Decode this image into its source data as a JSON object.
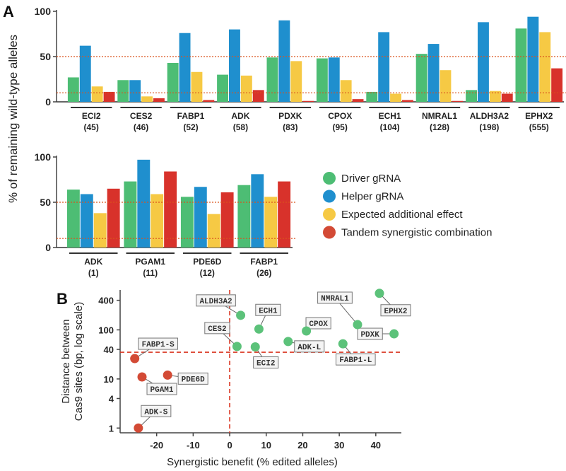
{
  "figure": {
    "panel_a_label": "A",
    "panel_b_label": "B",
    "shared_ylabel": "% of remaining wild-type alleles"
  },
  "colors": {
    "driver": "#4dbd74",
    "helper": "#1f8fce",
    "expected": "#f6c944",
    "tandem": "#d8322b",
    "ref_line": "#d9531e",
    "point_green": "#5cc27a",
    "point_red": "#d34a35",
    "label_border": "#777777"
  },
  "legend": {
    "items": [
      {
        "label": "Driver gRNA",
        "color": "#4dbd74"
      },
      {
        "label": "Helper gRNA",
        "color": "#1f8fce"
      },
      {
        "label": "Expected additional effect",
        "color": "#f6c944"
      },
      {
        "label": "Tandem synergistic combination",
        "color": "#d34a35"
      }
    ]
  },
  "chart_data": [
    {
      "type": "bar",
      "panel": "A-top",
      "ylim": [
        0,
        100
      ],
      "yticks": [
        0,
        50,
        100
      ],
      "ref_lines": [
        10,
        50
      ],
      "categories": [
        "ECI2",
        "CES2",
        "FABP1",
        "ADK",
        "PDXK",
        "CPOX",
        "ECH1",
        "NMRAL1",
        "ALDH3A2",
        "EPHX2"
      ],
      "category_sublabels": [
        "(45)",
        "(46)",
        "(52)",
        "(58)",
        "(83)",
        "(95)",
        "(104)",
        "(128)",
        "(198)",
        "(555)"
      ],
      "series": [
        {
          "name": "Driver gRNA",
          "values": [
            27,
            24,
            43,
            30,
            49,
            48,
            11,
            53,
            13,
            81
          ]
        },
        {
          "name": "Helper gRNA",
          "values": [
            62,
            24,
            76,
            80,
            90,
            49,
            77,
            64,
            88,
            94
          ]
        },
        {
          "name": "Expected additional effect",
          "values": [
            17,
            6,
            33,
            29,
            45,
            24,
            9,
            35,
            12,
            77
          ]
        },
        {
          "name": "Tandem synergistic combination",
          "values": [
            11,
            4,
            2,
            13,
            1,
            3,
            2,
            1,
            9,
            37
          ]
        }
      ]
    },
    {
      "type": "bar",
      "panel": "A-bottom",
      "ylim": [
        0,
        100
      ],
      "yticks": [
        0,
        50,
        100
      ],
      "ref_lines": [
        10,
        50
      ],
      "categories": [
        "ADK",
        "PGAM1",
        "PDE6D",
        "FABP1"
      ],
      "category_sublabels": [
        "(1)",
        "(11)",
        "(12)",
        "(26)"
      ],
      "series": [
        {
          "name": "Driver gRNA",
          "values": [
            64,
            73,
            56,
            69
          ]
        },
        {
          "name": "Helper gRNA",
          "values": [
            59,
            97,
            67,
            81
          ]
        },
        {
          "name": "Expected additional effect",
          "values": [
            38,
            59,
            37,
            56
          ]
        },
        {
          "name": "Tandem synergistic combination",
          "values": [
            65,
            84,
            61,
            73
          ]
        }
      ]
    },
    {
      "type": "scatter",
      "panel": "B",
      "xlabel": "Synergistic benefit (% edited alleles)",
      "ylabel_lines": [
        "Distance between",
        "Cas9 sites (bp, log scale)"
      ],
      "xlim": [
        -30,
        47
      ],
      "xticks": [
        -20,
        -10,
        0,
        10,
        20,
        30,
        40
      ],
      "ylim": [
        0.8,
        650
      ],
      "yscale": "log",
      "yticks": [
        1,
        4,
        10,
        40,
        100,
        400
      ],
      "ref_x": 0,
      "ref_y": 35,
      "points": [
        {
          "label": "ALDH3A2",
          "x": 3,
          "y": 198,
          "group": "green"
        },
        {
          "label": "ECH1",
          "x": 8,
          "y": 104,
          "group": "green"
        },
        {
          "label": "CES2",
          "x": 2,
          "y": 46,
          "group": "green"
        },
        {
          "label": "ECI2",
          "x": 7,
          "y": 45,
          "group": "green"
        },
        {
          "label": "CPOX",
          "x": 21,
          "y": 95,
          "group": "green"
        },
        {
          "label": "ADK-L",
          "x": 16,
          "y": 58,
          "group": "green"
        },
        {
          "label": "FABP1-L",
          "x": 31,
          "y": 52,
          "group": "green"
        },
        {
          "label": "NMRAL1",
          "x": 35,
          "y": 128,
          "group": "green"
        },
        {
          "label": "EPHX2",
          "x": 41,
          "y": 555,
          "group": "green"
        },
        {
          "label": "PDXK",
          "x": 45,
          "y": 83,
          "group": "green"
        },
        {
          "label": "FABP1-S",
          "x": -26,
          "y": 26,
          "group": "red"
        },
        {
          "label": "PGAM1",
          "x": -24,
          "y": 11,
          "group": "red"
        },
        {
          "label": "PDE6D",
          "x": -17,
          "y": 12,
          "group": "red"
        },
        {
          "label": "ADK-S",
          "x": -25,
          "y": 1,
          "group": "red"
        }
      ]
    }
  ]
}
